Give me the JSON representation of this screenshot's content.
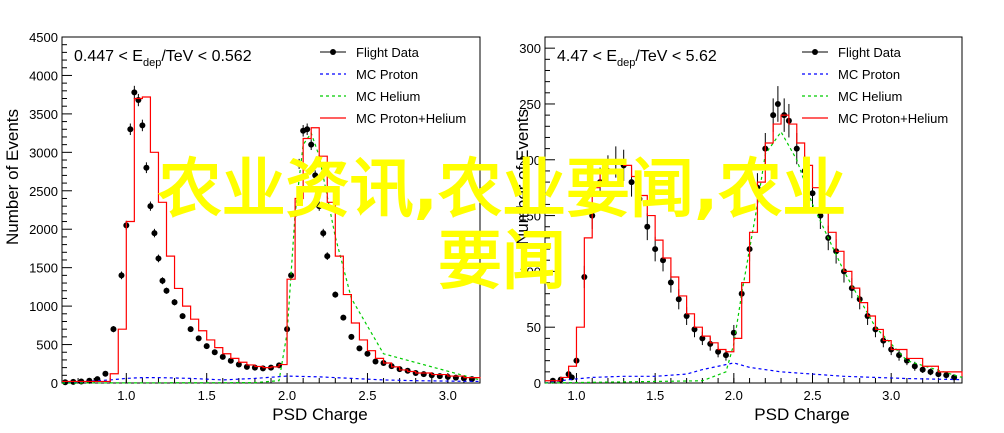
{
  "overlay": {
    "line1": "农业资讯,农业要闻,农业",
    "line2": "要闻",
    "color": "#ffff00"
  },
  "legend_labels": [
    "Flight Data",
    "MC Proton",
    "MC Helium",
    "MC Proton+Helium"
  ],
  "series_colors": {
    "Flight Data": "#000000",
    "MC Proton": "#0000ff",
    "MC Helium": "#00cc00",
    "MC Proton+Helium": "#ff0000"
  },
  "chart_data": [
    {
      "type": "line",
      "title_parts": {
        "pre": "0.447 < E",
        "sub": "dep",
        "post": "/TeV < 0.562"
      },
      "xlabel": "PSD Charge",
      "ylabel": "Number of Events",
      "xlim": [
        0.6,
        3.2
      ],
      "ylim": [
        0,
        4500
      ],
      "xticks": [
        "1.0",
        "1.5",
        "2.0",
        "2.5",
        "3.0"
      ],
      "xtick_values": [
        1.0,
        1.5,
        2.0,
        2.5,
        3.0
      ],
      "yticks": [
        "0",
        "500",
        "1000",
        "1500",
        "2000",
        "2500",
        "3000",
        "3500",
        "4000",
        "4500"
      ],
      "ytick_values": [
        0,
        500,
        1000,
        1500,
        2000,
        2500,
        3000,
        3500,
        4000,
        4500
      ],
      "legend_position": "top-right",
      "series": [
        {
          "name": "Flight Data",
          "style": "points",
          "x": [
            0.62,
            0.67,
            0.72,
            0.77,
            0.82,
            0.87,
            0.92,
            0.97,
            1.0,
            1.025,
            1.05,
            1.075,
            1.1,
            1.125,
            1.15,
            1.175,
            1.2,
            1.225,
            1.25,
            1.3,
            1.35,
            1.4,
            1.45,
            1.5,
            1.55,
            1.6,
            1.65,
            1.7,
            1.75,
            1.8,
            1.85,
            1.9,
            1.95,
            2.0,
            2.025,
            2.05,
            2.075,
            2.1,
            2.125,
            2.15,
            2.175,
            2.2,
            2.225,
            2.25,
            2.3,
            2.35,
            2.4,
            2.45,
            2.5,
            2.55,
            2.6,
            2.65,
            2.7,
            2.75,
            2.8,
            2.85,
            2.9,
            2.95,
            3.0,
            3.05,
            3.1,
            3.15
          ],
          "y": [
            10,
            15,
            20,
            30,
            50,
            120,
            700,
            1400,
            2050,
            3300,
            3780,
            3680,
            3350,
            2800,
            2300,
            1950,
            1620,
            1330,
            1200,
            1050,
            870,
            700,
            580,
            480,
            400,
            340,
            290,
            240,
            210,
            200,
            190,
            200,
            230,
            700,
            1400,
            2200,
            2850,
            3280,
            3300,
            3100,
            2700,
            2300,
            1950,
            1650,
            1150,
            850,
            600,
            450,
            380,
            280,
            260,
            220,
            180,
            160,
            130,
            115,
            100,
            90,
            80,
            70,
            60,
            50
          ],
          "err": [
            5,
            5,
            6,
            8,
            10,
            20,
            40,
            50,
            60,
            75,
            85,
            80,
            75,
            70,
            60,
            55,
            50,
            45,
            40,
            40,
            35,
            30,
            28,
            25,
            22,
            20,
            18,
            17,
            16,
            16,
            15,
            16,
            18,
            30,
            45,
            55,
            65,
            75,
            75,
            70,
            65,
            60,
            55,
            50,
            40,
            35,
            30,
            25,
            22,
            20,
            18,
            16,
            15,
            14,
            13,
            12,
            11,
            10,
            10,
            9,
            9,
            8
          ]
        },
        {
          "name": "MC Proton",
          "style": "dashed",
          "x": [
            0.6,
            0.9,
            1.0,
            1.1,
            1.2,
            1.4,
            1.6,
            1.8,
            2.0,
            2.2,
            2.4,
            2.6,
            2.8,
            3.0,
            3.2
          ],
          "y": [
            0,
            40,
            60,
            70,
            70,
            60,
            40,
            60,
            90,
            80,
            60,
            40,
            30,
            25,
            20
          ]
        },
        {
          "name": "MC Helium",
          "style": "dashed",
          "x": [
            0.6,
            1.8,
            1.95,
            2.0,
            2.05,
            2.1,
            2.15,
            2.2,
            2.3,
            2.4,
            2.6,
            3.2
          ],
          "y": [
            0,
            5,
            30,
            650,
            2200,
            3100,
            3250,
            2950,
            1900,
            1100,
            380,
            40
          ]
        },
        {
          "name": "MC Proton+Helium",
          "style": "step",
          "x": [
            0.6,
            0.9,
            0.95,
            1.0,
            1.05,
            1.1,
            1.15,
            1.2,
            1.25,
            1.3,
            1.35,
            1.4,
            1.45,
            1.5,
            1.55,
            1.6,
            1.65,
            1.7,
            1.75,
            1.8,
            1.85,
            1.9,
            1.95,
            2.0,
            2.05,
            2.1,
            2.15,
            2.2,
            2.25,
            2.3,
            2.35,
            2.4,
            2.45,
            2.5,
            2.55,
            2.6,
            2.65,
            2.7,
            2.75,
            2.8,
            2.9,
            3.0,
            3.1,
            3.2
          ],
          "y": [
            20,
            120,
            700,
            2100,
            3700,
            3720,
            3000,
            2350,
            1650,
            1230,
            1000,
            830,
            680,
            560,
            460,
            380,
            320,
            270,
            235,
            215,
            200,
            210,
            240,
            1350,
            2400,
            3180,
            3320,
            2950,
            2350,
            1650,
            1150,
            780,
            560,
            420,
            320,
            260,
            210,
            170,
            150,
            130,
            110,
            90,
            70,
            60
          ]
        }
      ]
    },
    {
      "type": "line",
      "title_parts": {
        "pre": "4.47 < E",
        "sub": "dep",
        "post": "/TeV < 5.62"
      },
      "xlabel": "PSD Charge",
      "ylabel": "Number of Events",
      "xlim": [
        0.8,
        3.45
      ],
      "ylim": [
        0,
        310
      ],
      "xticks": [
        "1.0",
        "1.5",
        "2.0",
        "2.5",
        "3.0"
      ],
      "xtick_values": [
        1.0,
        1.5,
        2.0,
        2.5,
        3.0
      ],
      "yticks": [
        "0",
        "50",
        "100",
        "150",
        "200",
        "250",
        "300"
      ],
      "ytick_values": [
        0,
        50,
        100,
        150,
        200,
        250,
        300
      ],
      "legend_position": "top-right",
      "series": [
        {
          "name": "Flight Data",
          "style": "points",
          "x": [
            0.85,
            0.9,
            0.95,
            0.97,
            1.0,
            1.05,
            1.1,
            1.15,
            1.2,
            1.25,
            1.3,
            1.35,
            1.4,
            1.45,
            1.5,
            1.55,
            1.6,
            1.65,
            1.7,
            1.75,
            1.8,
            1.85,
            1.9,
            1.95,
            2.0,
            2.05,
            2.1,
            2.15,
            2.2,
            2.25,
            2.28,
            2.32,
            2.35,
            2.4,
            2.45,
            2.5,
            2.55,
            2.6,
            2.65,
            2.7,
            2.75,
            2.8,
            2.85,
            2.9,
            2.95,
            3.0,
            3.05,
            3.1,
            3.15,
            3.2,
            3.25,
            3.3,
            3.35,
            3.4
          ],
          "y": [
            2,
            3,
            8,
            5,
            20,
            95,
            150,
            180,
            190,
            198,
            195,
            180,
            165,
            140,
            120,
            110,
            90,
            75,
            60,
            48,
            40,
            35,
            28,
            25,
            45,
            80,
            120,
            175,
            210,
            240,
            250,
            240,
            235,
            210,
            190,
            170,
            150,
            130,
            118,
            100,
            85,
            75,
            60,
            48,
            38,
            30,
            25,
            20,
            15,
            12,
            10,
            8,
            7,
            5
          ],
          "err": [
            1,
            2,
            3,
            2,
            5,
            10,
            12,
            13,
            14,
            14,
            14,
            13,
            13,
            12,
            11,
            10,
            9,
            9,
            8,
            7,
            6,
            6,
            5,
            5,
            7,
            9,
            11,
            13,
            14,
            15,
            16,
            15,
            15,
            14,
            14,
            13,
            12,
            11,
            11,
            10,
            9,
            9,
            8,
            7,
            6,
            5,
            5,
            4,
            4,
            3,
            3,
            3,
            3,
            2
          ]
        },
        {
          "name": "MC Proton",
          "style": "dashed",
          "x": [
            0.8,
            0.95,
            1.1,
            1.3,
            1.5,
            1.7,
            1.8,
            1.9,
            2.0,
            2.1,
            2.3,
            2.5,
            2.7,
            2.9,
            3.1,
            3.45
          ],
          "y": [
            0,
            3,
            5,
            6,
            6,
            8,
            12,
            15,
            18,
            14,
            10,
            8,
            6,
            5,
            4,
            3
          ]
        },
        {
          "name": "MC Helium",
          "style": "dashed",
          "x": [
            0.8,
            1.8,
            1.95,
            2.0,
            2.05,
            2.1,
            2.15,
            2.2,
            2.3,
            2.4,
            2.5,
            2.7,
            2.9,
            3.1,
            3.45
          ],
          "y": [
            0,
            2,
            10,
            35,
            80,
            120,
            160,
            205,
            225,
            200,
            160,
            100,
            50,
            20,
            5
          ]
        },
        {
          "name": "MC Proton+Helium",
          "style": "step",
          "x": [
            0.8,
            0.9,
            0.95,
            1.0,
            1.05,
            1.1,
            1.15,
            1.2,
            1.25,
            1.3,
            1.35,
            1.4,
            1.45,
            1.5,
            1.55,
            1.6,
            1.65,
            1.7,
            1.75,
            1.8,
            1.85,
            1.9,
            1.95,
            2.0,
            2.05,
            2.1,
            2.15,
            2.2,
            2.25,
            2.3,
            2.35,
            2.4,
            2.45,
            2.5,
            2.55,
            2.6,
            2.65,
            2.7,
            2.75,
            2.8,
            2.85,
            2.9,
            2.95,
            3.0,
            3.1,
            3.2,
            3.3,
            3.45
          ],
          "y": [
            2,
            5,
            15,
            50,
            130,
            175,
            190,
            198,
            200,
            195,
            185,
            168,
            150,
            128,
            112,
            95,
            78,
            62,
            50,
            42,
            36,
            30,
            28,
            40,
            90,
            135,
            180,
            215,
            232,
            240,
            232,
            215,
            195,
            175,
            155,
            135,
            118,
            100,
            85,
            72,
            60,
            48,
            38,
            30,
            22,
            15,
            10,
            6
          ]
        }
      ]
    }
  ]
}
